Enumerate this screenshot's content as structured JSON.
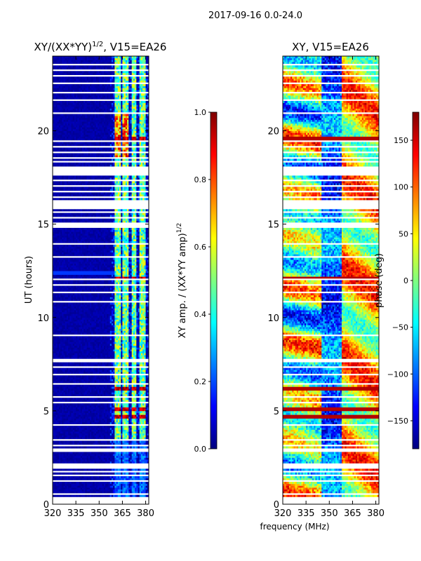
{
  "suptitle": "2017-09-16 0.0-24.0",
  "common_xlabel": "frequency (MHz)",
  "colors": {
    "jet": [
      "#00007f",
      "#0000ff",
      "#007fff",
      "#00ffff",
      "#7fff7f",
      "#ffff00",
      "#ff7f00",
      "#ff0000",
      "#7f0000"
    ],
    "gap": "#ffffff"
  },
  "chart_data": [
    {
      "type": "heatmap",
      "title_main": "XY/(XX*YY)",
      "title_sup": "1/2",
      "title_tail": ", V15=EA26",
      "ylabel": "UT (hours)",
      "xlim": [
        320,
        382
      ],
      "ylim": [
        0,
        24
      ],
      "xticks": [
        "320",
        "335",
        "350",
        "365",
        "380"
      ],
      "xtick_values": [
        320,
        335,
        350,
        365,
        380
      ],
      "yticks": [
        "0",
        "5",
        "10",
        "15",
        "20"
      ],
      "ytick_values": [
        0,
        5,
        10,
        15,
        20
      ],
      "bright_bands_mhz": [
        [
          360,
          364
        ],
        [
          365,
          369
        ],
        [
          371,
          374
        ],
        [
          376,
          380
        ]
      ],
      "strong_rfi_hours": [
        6.2,
        5.1,
        4.7,
        19.6,
        12.1
      ],
      "colorbar": {
        "label_main": "XY amp. / (XX*YY amp)",
        "label_sup": "1/2",
        "range": [
          0.0,
          1.0
        ],
        "ticks": [
          "0.0",
          "0.2",
          "0.4",
          "0.6",
          "0.8",
          "1.0"
        ],
        "tick_values": [
          0.0,
          0.2,
          0.4,
          0.6,
          0.8,
          1.0
        ]
      }
    },
    {
      "type": "heatmap",
      "title": "XY, V15=EA26",
      "xlim": [
        320,
        382
      ],
      "ylim": [
        0,
        24
      ],
      "xticks": [
        "320",
        "335",
        "350",
        "365",
        "380"
      ],
      "xtick_values": [
        320,
        335,
        350,
        365,
        380
      ],
      "yticks": [
        "0",
        "5",
        "10",
        "15",
        "20"
      ],
      "ytick_values": [
        0,
        5,
        10,
        15,
        20
      ],
      "colorbar": {
        "label": "phase (deg)",
        "range": [
          -180,
          180
        ],
        "ticks": [
          "−150",
          "−100",
          "−50",
          "0",
          "50",
          "100",
          "150"
        ],
        "tick_values": [
          -150,
          -100,
          -50,
          0,
          50,
          100,
          150
        ]
      }
    }
  ],
  "flagged_hour_ranges": [
    [
      0.0,
      0.35
    ],
    [
      0.55,
      0.62
    ],
    [
      1.2,
      1.28
    ],
    [
      1.5,
      1.6
    ],
    [
      1.75,
      1.82
    ],
    [
      1.95,
      2.05
    ],
    [
      2.15,
      2.22
    ],
    [
      2.85,
      2.95
    ],
    [
      3.1,
      3.18
    ],
    [
      3.4,
      3.5
    ],
    [
      4.25,
      4.32
    ],
    [
      5.45,
      5.52
    ],
    [
      5.75,
      5.82
    ],
    [
      6.45,
      6.52
    ],
    [
      6.95,
      7.02
    ],
    [
      7.3,
      7.38
    ],
    [
      7.62,
      7.8
    ],
    [
      9.05,
      9.12
    ],
    [
      10.8,
      10.9
    ],
    [
      11.3,
      11.4
    ],
    [
      11.75,
      11.82
    ],
    [
      12.0,
      12.1
    ],
    [
      13.2,
      13.27
    ],
    [
      13.95,
      14.02
    ],
    [
      14.85,
      15.05
    ],
    [
      15.3,
      15.38
    ],
    [
      15.6,
      15.68
    ],
    [
      15.85,
      16.3
    ],
    [
      16.45,
      16.52
    ],
    [
      16.7,
      16.8
    ],
    [
      17.0,
      17.1
    ],
    [
      17.3,
      17.42
    ],
    [
      17.6,
      18.1
    ],
    [
      18.3,
      18.36
    ],
    [
      18.55,
      18.6
    ],
    [
      18.8,
      18.86
    ],
    [
      19.1,
      19.15
    ],
    [
      19.4,
      19.45
    ],
    [
      20.9,
      20.95
    ],
    [
      21.6,
      21.66
    ],
    [
      22.05,
      22.1
    ],
    [
      22.5,
      22.55
    ],
    [
      22.95,
      23.0
    ],
    [
      23.2,
      23.3
    ],
    [
      23.5,
      23.55
    ]
  ]
}
